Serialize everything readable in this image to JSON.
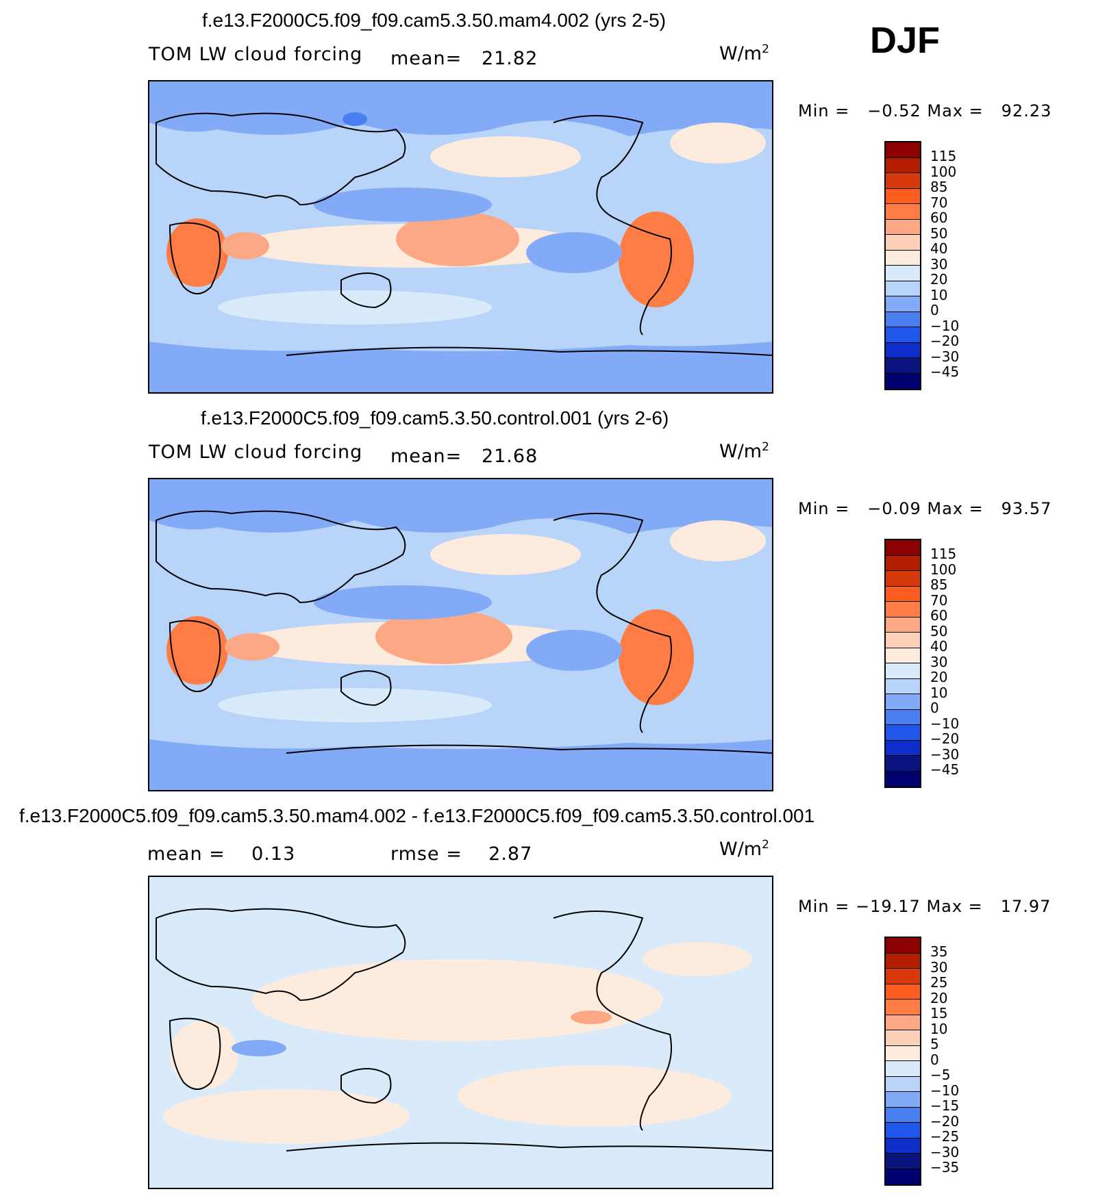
{
  "season": "DJF",
  "units_main": "W/m",
  "units_sup": "2",
  "panels": [
    {
      "title": "f.e13.F2000C5.f09_f09.cam5.3.50.mam4.002 (yrs 2-5)",
      "variable": "TOM LW cloud forcing",
      "stat1_label": "mean=",
      "stat1_value": "21.82",
      "min_label": "Min =",
      "min_value": "−0.52",
      "max_label": "Max =",
      "max_value": "92.23",
      "levels": [
        "115",
        "100",
        "85",
        "70",
        "60",
        "50",
        "40",
        "30",
        "20",
        "10",
        "0",
        "−10",
        "−20",
        "−30",
        "−45"
      ],
      "colors": [
        "#8b0000",
        "#b31e00",
        "#d8390a",
        "#ff5c1f",
        "#ff7d45",
        "#fca884",
        "#fdd0b8",
        "#fdebdd",
        "#d9eafb",
        "#b8d4f8",
        "#82aaf7",
        "#4a7ff2",
        "#2057eb",
        "#0d2ecb",
        "#0a1480",
        "#000070"
      ],
      "map_style": "base"
    },
    {
      "title": "f.e13.F2000C5.f09_f09.cam5.3.50.control.001 (yrs 2-6)",
      "variable": "TOM LW cloud forcing",
      "stat1_label": "mean=",
      "stat1_value": "21.68",
      "min_label": "Min =",
      "min_value": "−0.09",
      "max_label": "Max =",
      "max_value": "93.57",
      "levels": [
        "115",
        "100",
        "85",
        "70",
        "60",
        "50",
        "40",
        "30",
        "20",
        "10",
        "0",
        "−10",
        "−20",
        "−30",
        "−45"
      ],
      "colors": [
        "#8b0000",
        "#b31e00",
        "#d8390a",
        "#ff5c1f",
        "#ff7d45",
        "#fca884",
        "#fdd0b8",
        "#fdebdd",
        "#d9eafb",
        "#b8d4f8",
        "#82aaf7",
        "#4a7ff2",
        "#2057eb",
        "#0d2ecb",
        "#0a1480",
        "#000070"
      ],
      "map_style": "base"
    },
    {
      "title": "f.e13.F2000C5.f09_f09.cam5.3.50.mam4.002 - f.e13.F2000C5.f09_f09.cam5.3.50.control.001",
      "variable": "",
      "stat1_label": "mean =",
      "stat1_value": "0.13",
      "stat2_label": "rmse =",
      "stat2_value": "2.87",
      "min_label": "Min =",
      "min_value": "−19.17",
      "max_label": "Max =",
      "max_value": "17.97",
      "levels": [
        "35",
        "30",
        "25",
        "20",
        "15",
        "10",
        "5",
        "0",
        "−5",
        "−10",
        "−15",
        "−20",
        "−25",
        "−30",
        "−35"
      ],
      "colors": [
        "#8b0000",
        "#b31e00",
        "#d8390a",
        "#ff5c1f",
        "#ff7d45",
        "#fca884",
        "#fdd0b8",
        "#fdebdd",
        "#d9eafb",
        "#b8d4f8",
        "#82aaf7",
        "#4a7ff2",
        "#2057eb",
        "#0d2ecb",
        "#0a1480",
        "#000070"
      ],
      "map_style": "diff"
    }
  ]
}
